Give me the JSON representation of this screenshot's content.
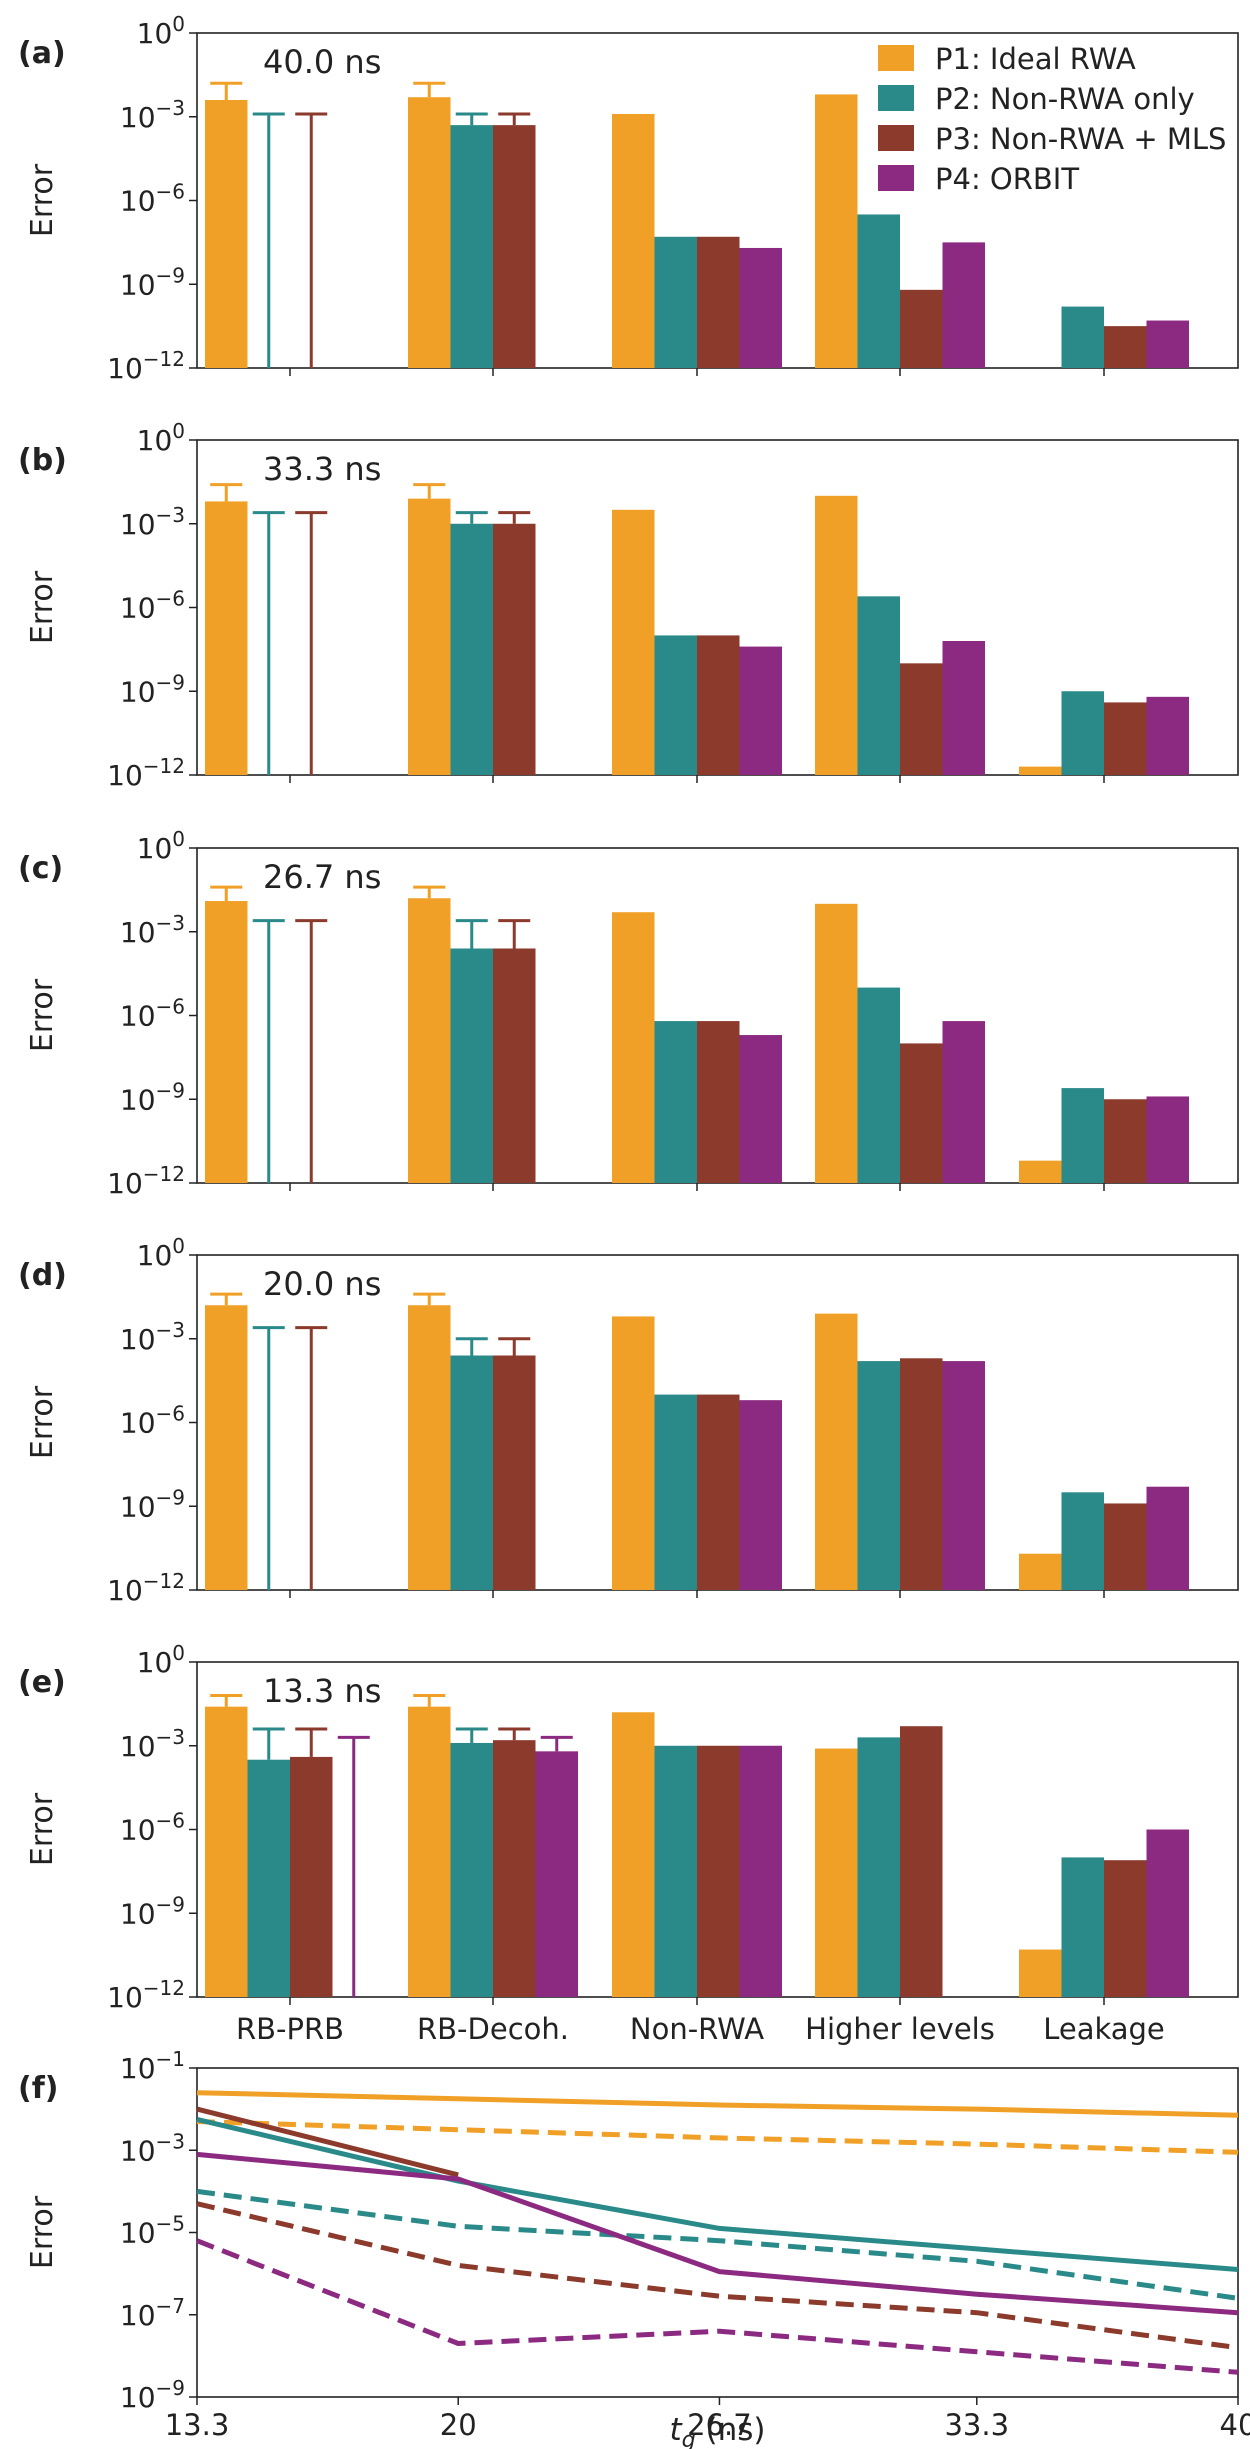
{
  "colors": {
    "P1": "#F0A026",
    "P2": "#2A8A8A",
    "P3": "#8B3A2B",
    "P4": "#8C2A82",
    "axis": "#222222"
  },
  "legend": [
    "P1: Ideal RWA",
    "P2: Non-RWA only",
    "P3: Non-RWA + MLS",
    "P4: ORBIT"
  ],
  "chart_data": [
    {
      "type": "bar",
      "panel_label": "(a)",
      "annotation": "40.0 ns",
      "ylabel": "Error",
      "yscale": "log",
      "ylim_exp": [
        -12,
        0
      ],
      "yticks": [
        "10^-12",
        "10^-9",
        "10^-6",
        "10^-3",
        "10^0"
      ],
      "categories": [
        "RB-PRB",
        "RB-Decoh.",
        "Non-RWA",
        "Higher levels",
        "Leakage"
      ],
      "show_xticklabels": false,
      "series": [
        {
          "name": "P1: Ideal RWA",
          "log10_values": [
            -2.4,
            -2.3,
            -2.9,
            -2.2,
            null
          ]
        },
        {
          "name": "P2: Non-RWA only",
          "log10_values": [
            null,
            -3.3,
            -7.3,
            -6.5,
            -9.8
          ]
        },
        {
          "name": "P3: Non-RWA + MLS",
          "log10_values": [
            null,
            -3.3,
            -7.3,
            -9.2,
            -10.5
          ]
        },
        {
          "name": "P4: ORBIT",
          "log10_values": [
            null,
            null,
            -7.7,
            -7.5,
            -10.3
          ]
        }
      ],
      "error_bars": [
        {
          "series": 0,
          "category": 0,
          "top_log10": -1.8,
          "bottom_log10": null
        },
        {
          "series": 1,
          "category": 0,
          "top_log10": -2.9,
          "bottom_log10": -12
        },
        {
          "series": 2,
          "category": 0,
          "top_log10": -2.9,
          "bottom_log10": -12
        },
        {
          "series": 0,
          "category": 1,
          "top_log10": -1.8,
          "bottom_log10": null
        },
        {
          "series": 1,
          "category": 1,
          "top_log10": -2.9,
          "bottom_log10": null
        },
        {
          "series": 2,
          "category": 1,
          "top_log10": -2.9,
          "bottom_log10": null
        }
      ]
    },
    {
      "type": "bar",
      "panel_label": "(b)",
      "annotation": "33.3 ns",
      "ylabel": "Error",
      "yscale": "log",
      "ylim_exp": [
        -12,
        0
      ],
      "yticks": [
        "10^-12",
        "10^-9",
        "10^-6",
        "10^-3",
        "10^0"
      ],
      "categories": [
        "RB-PRB",
        "RB-Decoh.",
        "Non-RWA",
        "Higher levels",
        "Leakage"
      ],
      "show_xticklabels": false,
      "series": [
        {
          "name": "P1: Ideal RWA",
          "log10_values": [
            -2.2,
            -2.1,
            -2.5,
            -2.0,
            -11.7
          ]
        },
        {
          "name": "P2: Non-RWA only",
          "log10_values": [
            null,
            -3.0,
            -7.0,
            -5.6,
            -9.0
          ]
        },
        {
          "name": "P3: Non-RWA + MLS",
          "log10_values": [
            null,
            -3.0,
            -7.0,
            -8.0,
            -9.4
          ]
        },
        {
          "name": "P4: ORBIT",
          "log10_values": [
            null,
            null,
            -7.4,
            -7.2,
            -9.2
          ]
        }
      ],
      "error_bars": [
        {
          "series": 0,
          "category": 0,
          "top_log10": -1.6,
          "bottom_log10": null
        },
        {
          "series": 1,
          "category": 0,
          "top_log10": -2.6,
          "bottom_log10": -12
        },
        {
          "series": 2,
          "category": 0,
          "top_log10": -2.6,
          "bottom_log10": -12
        },
        {
          "series": 0,
          "category": 1,
          "top_log10": -1.6,
          "bottom_log10": null
        },
        {
          "series": 1,
          "category": 1,
          "top_log10": -2.6,
          "bottom_log10": null
        },
        {
          "series": 2,
          "category": 1,
          "top_log10": -2.6,
          "bottom_log10": null
        }
      ]
    },
    {
      "type": "bar",
      "panel_label": "(c)",
      "annotation": "26.7 ns",
      "ylabel": "Error",
      "yscale": "log",
      "ylim_exp": [
        -12,
        0
      ],
      "yticks": [
        "10^-12",
        "10^-9",
        "10^-6",
        "10^-3",
        "10^0"
      ],
      "categories": [
        "RB-PRB",
        "RB-Decoh.",
        "Non-RWA",
        "Higher levels",
        "Leakage"
      ],
      "show_xticklabels": false,
      "series": [
        {
          "name": "P1: Ideal RWA",
          "log10_values": [
            -1.9,
            -1.8,
            -2.3,
            -2.0,
            -11.2
          ]
        },
        {
          "name": "P2: Non-RWA only",
          "log10_values": [
            null,
            -3.6,
            -6.2,
            -5.0,
            -8.6
          ]
        },
        {
          "name": "P3: Non-RWA + MLS",
          "log10_values": [
            null,
            -3.6,
            -6.2,
            -7.0,
            -9.0
          ]
        },
        {
          "name": "P4: ORBIT",
          "log10_values": [
            null,
            null,
            -6.7,
            -6.2,
            -8.9
          ]
        }
      ],
      "error_bars": [
        {
          "series": 0,
          "category": 0,
          "top_log10": -1.4,
          "bottom_log10": null
        },
        {
          "series": 1,
          "category": 0,
          "top_log10": -2.6,
          "bottom_log10": -12
        },
        {
          "series": 2,
          "category": 0,
          "top_log10": -2.6,
          "bottom_log10": -12
        },
        {
          "series": 0,
          "category": 1,
          "top_log10": -1.4,
          "bottom_log10": null
        },
        {
          "series": 1,
          "category": 1,
          "top_log10": -2.6,
          "bottom_log10": null
        },
        {
          "series": 2,
          "category": 1,
          "top_log10": -2.6,
          "bottom_log10": null
        }
      ]
    },
    {
      "type": "bar",
      "panel_label": "(d)",
      "annotation": "20.0 ns",
      "ylabel": "Error",
      "yscale": "log",
      "ylim_exp": [
        -12,
        0
      ],
      "yticks": [
        "10^-12",
        "10^-9",
        "10^-6",
        "10^-3",
        "10^0"
      ],
      "categories": [
        "RB-PRB",
        "RB-Decoh.",
        "Non-RWA",
        "Higher levels",
        "Leakage"
      ],
      "show_xticklabels": false,
      "series": [
        {
          "name": "P1: Ideal RWA",
          "log10_values": [
            -1.8,
            -1.8,
            -2.2,
            -2.1,
            -10.7
          ]
        },
        {
          "name": "P2: Non-RWA only",
          "log10_values": [
            null,
            -3.6,
            -5.0,
            -3.8,
            -8.5
          ]
        },
        {
          "name": "P3: Non-RWA + MLS",
          "log10_values": [
            null,
            -3.6,
            -5.0,
            -3.7,
            -8.9
          ]
        },
        {
          "name": "P4: ORBIT",
          "log10_values": [
            null,
            null,
            -5.2,
            -3.8,
            -8.3
          ]
        }
      ],
      "error_bars": [
        {
          "series": 0,
          "category": 0,
          "top_log10": -1.4,
          "bottom_log10": null
        },
        {
          "series": 1,
          "category": 0,
          "top_log10": -2.6,
          "bottom_log10": -12
        },
        {
          "series": 2,
          "category": 0,
          "top_log10": -2.6,
          "bottom_log10": -12
        },
        {
          "series": 0,
          "category": 1,
          "top_log10": -1.4,
          "bottom_log10": null
        },
        {
          "series": 1,
          "category": 1,
          "top_log10": -3.0,
          "bottom_log10": null
        },
        {
          "series": 2,
          "category": 1,
          "top_log10": -3.0,
          "bottom_log10": null
        }
      ]
    },
    {
      "type": "bar",
      "panel_label": "(e)",
      "annotation": "13.3 ns",
      "ylabel": "Error",
      "yscale": "log",
      "ylim_exp": [
        -12,
        0
      ],
      "yticks": [
        "10^-12",
        "10^-9",
        "10^-6",
        "10^-3",
        "10^0"
      ],
      "categories": [
        "RB-PRB",
        "RB-Decoh.",
        "Non-RWA",
        "Higher levels",
        "Leakage"
      ],
      "show_xticklabels": true,
      "series": [
        {
          "name": "P1: Ideal RWA",
          "log10_values": [
            -1.6,
            -1.6,
            -1.8,
            -3.1,
            -10.3
          ]
        },
        {
          "name": "P2: Non-RWA only",
          "log10_values": [
            -3.5,
            -2.9,
            -3.0,
            -2.7,
            -7.0
          ]
        },
        {
          "name": "P3: Non-RWA + MLS",
          "log10_values": [
            -3.4,
            -2.8,
            -3.0,
            -2.3,
            -7.1
          ]
        },
        {
          "name": "P4: ORBIT",
          "log10_values": [
            null,
            -3.2,
            -3.0,
            null,
            -6.0
          ]
        }
      ],
      "error_bars": [
        {
          "series": 0,
          "category": 0,
          "top_log10": -1.2,
          "bottom_log10": null
        },
        {
          "series": 1,
          "category": 0,
          "top_log10": -2.4,
          "bottom_log10": null
        },
        {
          "series": 2,
          "category": 0,
          "top_log10": -2.4,
          "bottom_log10": null
        },
        {
          "series": 3,
          "category": 0,
          "top_log10": -2.7,
          "bottom_log10": -12
        },
        {
          "series": 0,
          "category": 1,
          "top_log10": -1.2,
          "bottom_log10": null
        },
        {
          "series": 1,
          "category": 1,
          "top_log10": -2.4,
          "bottom_log10": null
        },
        {
          "series": 2,
          "category": 1,
          "top_log10": -2.4,
          "bottom_log10": null
        },
        {
          "series": 3,
          "category": 1,
          "top_log10": -2.7,
          "bottom_log10": null
        }
      ]
    },
    {
      "type": "line",
      "panel_label": "(f)",
      "xlabel": "t_g (ns)",
      "ylabel": "Error",
      "yscale": "log",
      "ylim_exp": [
        -9,
        -1
      ],
      "x": [
        13.3,
        20,
        26.7,
        33.3,
        40
      ],
      "xticklabels": [
        "13.3",
        "20",
        "26.7",
        "33.3",
        "40"
      ],
      "yticks": [
        "10^-9",
        "10^-7",
        "10^-5",
        "10^-3",
        "10^-1"
      ],
      "series": [
        {
          "name": "P1 solid",
          "color_key": "P1",
          "style": "solid",
          "log10_values": [
            -1.6,
            -1.75,
            -1.9,
            -2.0,
            -2.15
          ]
        },
        {
          "name": "P1 dashed",
          "color_key": "P1",
          "style": "dashed",
          "log10_values": [
            -2.3,
            -2.5,
            -2.7,
            -2.85,
            -3.05
          ]
        },
        {
          "name": "P2 solid",
          "color_key": "P2",
          "style": "solid",
          "log10_values": [
            -2.25,
            -3.75,
            -4.9,
            -5.4,
            -5.9
          ]
        },
        {
          "name": "P2 dashed",
          "color_key": "P2",
          "style": "dashed",
          "log10_values": [
            -4.0,
            -4.85,
            -5.2,
            -5.7,
            -6.6
          ]
        },
        {
          "name": "P3 solid",
          "color_key": "P3",
          "style": "solid",
          "log10_values": [
            -2.0,
            -3.6,
            null,
            null,
            null
          ]
        },
        {
          "name": "P3 dashed",
          "color_key": "P3",
          "style": "dashed",
          "log10_values": [
            -4.3,
            -5.8,
            -6.55,
            -6.95,
            -7.8
          ]
        },
        {
          "name": "P4 solid",
          "color_key": "P4",
          "style": "solid",
          "log10_values": [
            -3.1,
            -3.7,
            -5.95,
            -6.5,
            -6.95
          ]
        },
        {
          "name": "P4 dashed",
          "color_key": "P4",
          "style": "dashed",
          "log10_values": [
            -5.2,
            -7.7,
            -7.4,
            -7.9,
            -8.4
          ]
        }
      ]
    }
  ]
}
